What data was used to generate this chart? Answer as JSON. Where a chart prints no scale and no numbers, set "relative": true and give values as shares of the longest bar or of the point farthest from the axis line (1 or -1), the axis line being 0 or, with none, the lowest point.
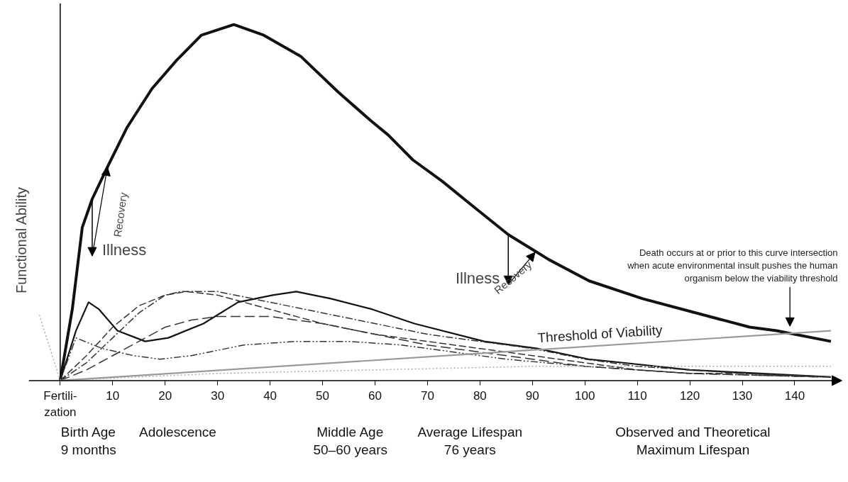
{
  "chart_data": {
    "type": "line",
    "relative": true,
    "ylabel": "Functional Ability",
    "xlim": [
      -6,
      149
    ],
    "xticks": [
      {
        "value": 0,
        "label": "Fertili-\nzation"
      },
      10,
      20,
      30,
      40,
      50,
      60,
      70,
      80,
      90,
      100,
      110,
      120,
      130,
      140
    ],
    "marker": "none",
    "series": [
      {
        "color": "#111111",
        "line_style": "solid",
        "x": [
          0,
          2.3,
          4.2,
          6.1,
          9,
          12.7,
          17.5,
          22.2,
          26.9,
          33.1,
          38.8,
          45.9,
          53,
          59.2,
          62.5,
          67.2,
          72.8,
          77.8,
          85.4,
          93.1,
          100.8,
          111,
          121.2,
          131.4,
          136.5,
          146.9
        ],
        "values": [
          0,
          0.2,
          0.43,
          0.51,
          0.6,
          0.71,
          0.82,
          0.9,
          0.97,
          1,
          0.97,
          0.91,
          0.81,
          0.73,
          0.69,
          0.62,
          0.56,
          0.5,
          0.41,
          0.34,
          0.28,
          0.23,
          0.19,
          0.15,
          0.14,
          0.11
        ]
      },
      {
        "color": "#111111",
        "line_style": "solid",
        "x": [
          0,
          3,
          5.4,
          7.4,
          10.9,
          16.2,
          20.6,
          27.3,
          33.9,
          40.5,
          45,
          51.6,
          59.5,
          67.5,
          80.8,
          90.9,
          100.7,
          107.3,
          120,
          146.9
        ],
        "values": [
          0,
          0.14,
          0.22,
          0.2,
          0.14,
          0.11,
          0.12,
          0.16,
          0.22,
          0.24,
          0.25,
          0.23,
          0.2,
          0.16,
          0.11,
          0.09,
          0.06,
          0.05,
          0.03,
          0.01
        ]
      },
      {
        "color": "#333333",
        "line_style": "dashed",
        "x": [
          0,
          5,
          10,
          15,
          20,
          24,
          30,
          40,
          50,
          60,
          70,
          80,
          90,
          100,
          110,
          120,
          130,
          146.9
        ],
        "values": [
          0,
          0.07,
          0.15,
          0.21,
          0.24,
          0.25,
          0.24,
          0.2,
          0.16,
          0.13,
          0.11,
          0.09,
          0.07,
          0.05,
          0.03,
          0.02,
          0.02,
          0.01
        ]
      },
      {
        "color": "#333333",
        "line_style": "dashed",
        "x": [
          0,
          5,
          10,
          15,
          20,
          23,
          30,
          40,
          50,
          60,
          70,
          80,
          90,
          100,
          110,
          120,
          130,
          146
        ],
        "values": [
          0,
          0.05,
          0.12,
          0.19,
          0.24,
          0.25,
          0.25,
          0.22,
          0.19,
          0.16,
          0.13,
          0.11,
          0.09,
          0.06,
          0.04,
          0.03,
          0.02,
          0.01
        ]
      },
      {
        "color": "#333333",
        "line_style": "dashed",
        "x": [
          0,
          5,
          10,
          15,
          20,
          25,
          30,
          40,
          50,
          60,
          70,
          80,
          90,
          100,
          110,
          120,
          145.5
        ],
        "values": [
          0,
          0.03,
          0.07,
          0.11,
          0.15,
          0.17,
          0.18,
          0.18,
          0.16,
          0.13,
          0.1,
          0.08,
          0.06,
          0.04,
          0.03,
          0.02,
          0.01
        ]
      },
      {
        "color": "#333333",
        "line_style": "dashed",
        "x": [
          0,
          3,
          8,
          14,
          19,
          25,
          35,
          45,
          55,
          65,
          75,
          85,
          100,
          110,
          120,
          145
        ],
        "values": [
          0,
          0.12,
          0.09,
          0.07,
          0.06,
          0.07,
          0.1,
          0.11,
          0.11,
          0.1,
          0.08,
          0.06,
          0.04,
          0.03,
          0.02,
          0.01
        ]
      },
      {
        "name": "Threshold of Viability",
        "color": "#999999",
        "line_style": "solid",
        "x": [
          0,
          146.9
        ],
        "values": [
          0,
          0.14
        ]
      },
      {
        "color": "#aaaaaa",
        "line_style": "dotted",
        "x": [
          0,
          30,
          60,
          90,
          110,
          146.9
        ],
        "values": [
          0,
          0.02,
          0.03,
          0.04,
          0.04,
          0.04
        ]
      },
      {
        "color": "#aaaaaa",
        "line_style": "dotted",
        "x": [
          0,
          -4.1
        ],
        "values": [
          0,
          0.19
        ]
      }
    ],
    "annotations": [
      {
        "text": "Illness",
        "x": 6.1,
        "y": 0.51
      },
      {
        "text": "Recovery",
        "x": 9,
        "y": 0.6
      },
      {
        "text": "Illness",
        "x": 85.4,
        "y": 0.41
      },
      {
        "text": "Recovery",
        "x": 90.5,
        "y": 0.36
      },
      "Death occurs at or prior to this curve intersection\nwhen acute environmental insult pushes the human\norganism below the viability threshold",
      "Birth Age\n9 months",
      "Adolescence",
      "Middle Age\n50–60 years",
      "Average Lifespan\n76 years",
      "Observed and Theoretical\nMaximum Lifespan"
    ]
  }
}
